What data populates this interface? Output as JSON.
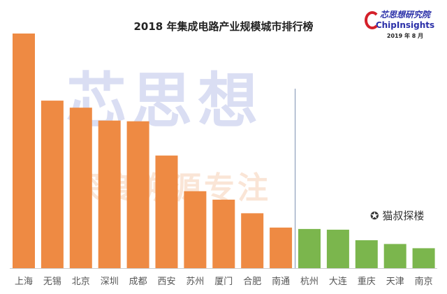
{
  "chart_data": {
    "type": "bar",
    "title": "2018 年集成电路产业规模城市排行榜",
    "categories": [
      "上海",
      "无锡",
      "北京",
      "深圳",
      "成都",
      "西安",
      "苏州",
      "厦门",
      "合肥",
      "南通",
      "杭州",
      "大连",
      "重庆",
      "天津",
      "南京"
    ],
    "values": [
      100,
      71.4,
      68.4,
      62.9,
      62.6,
      48,
      32.8,
      29.2,
      23.4,
      17.3,
      16.7,
      16.4,
      11.9,
      10.3,
      8.5
    ],
    "value_note_unit": "",
    "colors": [
      "#ee8a43",
      "#ee8a43",
      "#ee8a43",
      "#ee8a43",
      "#ee8a43",
      "#ee8a43",
      "#ee8a43",
      "#ee8a43",
      "#ee8a43",
      "#ee8a43",
      "#7bb64d",
      "#7bb64d",
      "#7bb64d",
      "#7bb64d",
      "#7bb64d"
    ],
    "ylim": [
      0,
      100
    ],
    "y_axis_shown": false,
    "grid": false,
    "divider_after": "南通"
  },
  "logo": {
    "cn": "芯思想研究院",
    "en": "ChipInsights",
    "date": "2019 年 8 月"
  },
  "watermark": {
    "main": "芯思想",
    "sub": "深度溯源专注",
    "wechat": "猫叔探楼"
  }
}
